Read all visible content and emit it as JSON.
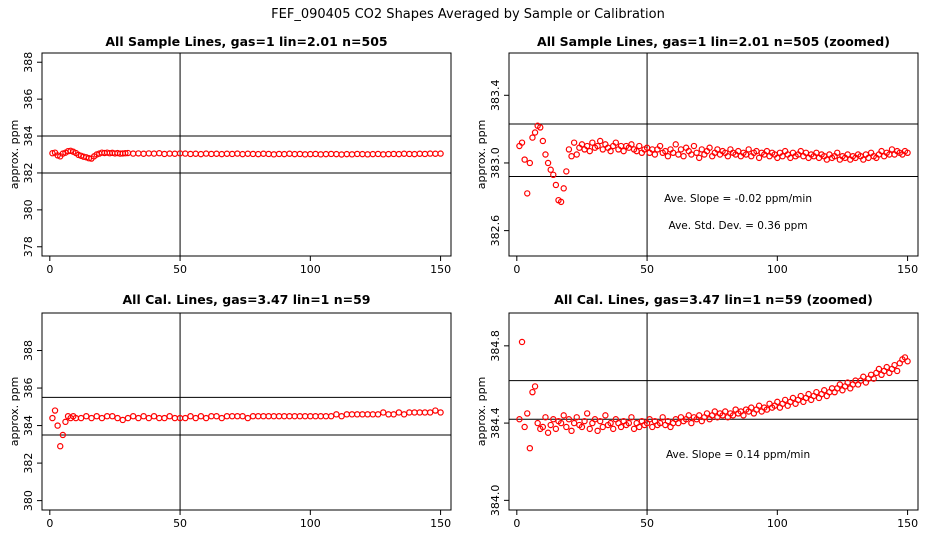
{
  "figure_title": "FEF_090405  CO2 Shapes Averaged by Sample or Calibration",
  "colors": {
    "points": "#ff0000",
    "axes": "#000000"
  },
  "chart_data": [
    {
      "type": "scatter",
      "title": "All Sample Lines, gas=1 lin=2.01 n=505",
      "xlabel": "",
      "ylabel": "approx. ppm",
      "xlim": [
        -3,
        154
      ],
      "ylim": [
        377.5,
        388.5
      ],
      "xticks": [
        0,
        50,
        100,
        150
      ],
      "yticks": [
        378,
        380,
        382,
        384,
        386,
        388
      ],
      "vline": 50,
      "hlines": [
        382,
        384
      ],
      "annotations": [],
      "series": [
        {
          "x": [
            1,
            2,
            3,
            4,
            5,
            6,
            7,
            8,
            9,
            10,
            11,
            12,
            13,
            14,
            15,
            16,
            17,
            18,
            19,
            20,
            21,
            22,
            23,
            24,
            25,
            26,
            27,
            28,
            29,
            30,
            32,
            34,
            36,
            38,
            40,
            42,
            44,
            46,
            48,
            50,
            52,
            54,
            56,
            58,
            60,
            62,
            64,
            66,
            68,
            70,
            72,
            74,
            76,
            78,
            80,
            82,
            84,
            86,
            88,
            90,
            92,
            94,
            96,
            98,
            100,
            102,
            104,
            106,
            108,
            110,
            112,
            114,
            116,
            118,
            120,
            122,
            124,
            126,
            128,
            130,
            132,
            134,
            136,
            138,
            140,
            142,
            144,
            146,
            148,
            150
          ],
          "y": [
            383.07,
            383.1,
            382.95,
            382.9,
            383.05,
            383.1,
            383.18,
            383.2,
            383.15,
            383.08,
            382.98,
            382.93,
            382.88,
            382.85,
            382.8,
            382.78,
            382.9,
            383.0,
            383.05,
            383.1,
            383.08,
            383.1,
            383.07,
            383.09,
            383.06,
            383.08,
            383.05,
            383.06,
            383.07,
            383.08,
            383.05,
            383.06,
            383.04,
            383.06,
            383.05,
            383.07,
            383.03,
            383.05,
            383.04,
            383.06,
            383.05,
            383.03,
            383.04,
            383.02,
            383.05,
            383.03,
            383.04,
            383.02,
            383.04,
            383.03,
            383.05,
            383.02,
            383.04,
            383.03,
            383.02,
            383.04,
            383.03,
            383.01,
            383.03,
            383.02,
            383.04,
            383.02,
            383.03,
            383.01,
            383.02,
            383.03,
            383.01,
            383.02,
            383.03,
            383.02,
            383.0,
            383.02,
            383.01,
            383.03,
            383.02,
            383.01,
            383.02,
            383.03,
            383.01,
            383.02,
            383.03,
            383.02,
            383.04,
            383.03,
            383.02,
            383.04,
            383.03,
            383.05,
            383.04,
            383.05
          ]
        }
      ]
    },
    {
      "type": "scatter",
      "title": "All Sample Lines, gas=1 lin=2.01 n=505 (zoomed)",
      "xlabel": "",
      "ylabel": "approx. ppm",
      "xlim": [
        -3,
        154
      ],
      "ylim": [
        382.45,
        383.65
      ],
      "xticks": [
        0,
        50,
        100,
        150
      ],
      "yticks": [
        382.6,
        383.0,
        383.4
      ],
      "yticklabels": [
        "382.6",
        "383.0",
        "383.4"
      ],
      "vline": 50,
      "hlines": [
        382.92,
        383.23
      ],
      "annotations": [
        "Ave. Slope =  -0.02  ppm/min",
        "Ave. Std. Dev. =  0.36  ppm"
      ],
      "series": [
        {
          "x": [
            1,
            2,
            3,
            4,
            5,
            6,
            7,
            8,
            9,
            10,
            11,
            12,
            13,
            14,
            15,
            16,
            17,
            18,
            19,
            20,
            21,
            22,
            23,
            24,
            25,
            26,
            27,
            28,
            29,
            30,
            31,
            32,
            33,
            34,
            35,
            36,
            37,
            38,
            39,
            40,
            41,
            42,
            43,
            44,
            45,
            46,
            47,
            48,
            49,
            50,
            51,
            52,
            53,
            54,
            55,
            56,
            57,
            58,
            59,
            60,
            61,
            62,
            63,
            64,
            65,
            66,
            67,
            68,
            69,
            70,
            71,
            72,
            73,
            74,
            75,
            76,
            77,
            78,
            79,
            80,
            81,
            82,
            83,
            84,
            85,
            86,
            87,
            88,
            89,
            90,
            91,
            92,
            93,
            94,
            95,
            96,
            97,
            98,
            99,
            100,
            101,
            102,
            103,
            104,
            105,
            106,
            107,
            108,
            109,
            110,
            111,
            112,
            113,
            114,
            115,
            116,
            117,
            118,
            119,
            120,
            121,
            122,
            123,
            124,
            125,
            126,
            127,
            128,
            129,
            130,
            131,
            132,
            133,
            134,
            135,
            136,
            137,
            138,
            139,
            140,
            141,
            142,
            143,
            144,
            145,
            146,
            147,
            148,
            149,
            150
          ],
          "y": [
            383.1,
            383.12,
            383.02,
            382.82,
            383.0,
            383.15,
            383.18,
            383.22,
            383.21,
            383.13,
            383.05,
            383.0,
            382.96,
            382.93,
            382.87,
            382.78,
            382.77,
            382.85,
            382.95,
            383.08,
            383.04,
            383.12,
            383.05,
            383.09,
            383.11,
            383.08,
            383.1,
            383.07,
            383.12,
            383.09,
            383.1,
            383.13,
            383.08,
            383.11,
            383.09,
            383.07,
            383.1,
            383.12,
            383.08,
            383.1,
            383.07,
            383.1,
            383.09,
            383.11,
            383.08,
            383.07,
            383.1,
            383.06,
            383.08,
            383.09,
            383.06,
            383.08,
            383.05,
            383.08,
            383.1,
            383.06,
            383.07,
            383.04,
            383.08,
            383.06,
            383.11,
            383.05,
            383.08,
            383.04,
            383.09,
            383.07,
            383.05,
            383.1,
            383.06,
            383.03,
            383.08,
            383.05,
            383.07,
            383.09,
            383.04,
            383.06,
            383.08,
            383.05,
            383.07,
            383.06,
            383.04,
            383.08,
            383.06,
            383.05,
            383.07,
            383.04,
            383.06,
            383.05,
            383.08,
            383.04,
            383.06,
            383.07,
            383.03,
            383.06,
            383.05,
            383.07,
            383.04,
            383.06,
            383.05,
            383.03,
            383.06,
            383.04,
            383.07,
            383.05,
            383.03,
            383.06,
            383.04,
            383.05,
            383.07,
            383.04,
            383.06,
            383.03,
            383.05,
            383.04,
            383.06,
            383.03,
            383.05,
            383.04,
            383.02,
            383.05,
            383.03,
            383.04,
            383.06,
            383.02,
            383.04,
            383.03,
            383.05,
            383.02,
            383.04,
            383.03,
            383.05,
            383.04,
            383.02,
            383.05,
            383.03,
            383.06,
            383.04,
            383.03,
            383.05,
            383.07,
            383.04,
            383.06,
            383.05,
            383.08,
            383.05,
            383.07,
            383.06,
            383.05,
            383.07,
            383.06
          ]
        }
      ]
    },
    {
      "type": "scatter",
      "title": "All Cal. Lines, gas=3.47 lin=1 n=59",
      "xlabel": "",
      "ylabel": "approx. ppm",
      "xlim": [
        -3,
        154
      ],
      "ylim": [
        379.5,
        390.0
      ],
      "xticks": [
        0,
        50,
        100,
        150
      ],
      "yticks": [
        380,
        382,
        384,
        386,
        388
      ],
      "vline": 50,
      "hlines": [
        383.5,
        385.5
      ],
      "annotations": [],
      "series": [
        {
          "x": [
            1,
            2,
            3,
            4,
            5,
            6,
            7,
            8,
            9,
            10,
            12,
            14,
            16,
            18,
            20,
            22,
            24,
            26,
            28,
            30,
            32,
            34,
            36,
            38,
            40,
            42,
            44,
            46,
            48,
            50,
            52,
            54,
            56,
            58,
            60,
            62,
            64,
            66,
            68,
            70,
            72,
            74,
            76,
            78,
            80,
            82,
            84,
            86,
            88,
            90,
            92,
            94,
            96,
            98,
            100,
            102,
            104,
            106,
            108,
            110,
            112,
            114,
            116,
            118,
            120,
            122,
            124,
            126,
            128,
            130,
            132,
            134,
            136,
            138,
            140,
            142,
            144,
            146,
            148,
            150
          ],
          "y": [
            384.4,
            384.8,
            384.0,
            382.9,
            383.5,
            384.2,
            384.5,
            384.4,
            384.5,
            384.4,
            384.4,
            384.5,
            384.4,
            384.5,
            384.4,
            384.5,
            384.5,
            384.4,
            384.3,
            384.4,
            384.5,
            384.4,
            384.5,
            384.4,
            384.5,
            384.4,
            384.4,
            384.5,
            384.4,
            384.4,
            384.4,
            384.5,
            384.4,
            384.5,
            384.4,
            384.5,
            384.5,
            384.4,
            384.5,
            384.5,
            384.5,
            384.5,
            384.4,
            384.5,
            384.5,
            384.5,
            384.5,
            384.5,
            384.5,
            384.5,
            384.5,
            384.5,
            384.5,
            384.5,
            384.5,
            384.5,
            384.5,
            384.5,
            384.5,
            384.6,
            384.5,
            384.6,
            384.6,
            384.6,
            384.6,
            384.6,
            384.6,
            384.6,
            384.7,
            384.6,
            384.6,
            384.7,
            384.6,
            384.7,
            384.7,
            384.7,
            384.7,
            384.7,
            384.8,
            384.7
          ]
        }
      ]
    },
    {
      "type": "scatter",
      "title": "All Cal. Lines, gas=3.47 lin=1 n=59 (zoomed)",
      "xlabel": "",
      "ylabel": "approx. ppm",
      "xlim": [
        -3,
        154
      ],
      "ylim": [
        383.95,
        384.97
      ],
      "xticks": [
        0,
        50,
        100,
        150
      ],
      "yticks": [
        384.0,
        384.4,
        384.8
      ],
      "yticklabels": [
        "384.0",
        "384.4",
        "384.8"
      ],
      "vline": 50,
      "hlines": [
        384.42,
        384.62
      ],
      "annotations": [
        "Ave. Slope =  0.14  ppm/min"
      ],
      "series": [
        {
          "x": [
            1,
            2,
            3,
            4,
            5,
            6,
            7,
            8,
            9,
            10,
            11,
            12,
            13,
            14,
            15,
            16,
            17,
            18,
            19,
            20,
            21,
            22,
            23,
            24,
            25,
            26,
            27,
            28,
            29,
            30,
            31,
            32,
            33,
            34,
            35,
            36,
            37,
            38,
            39,
            40,
            41,
            42,
            43,
            44,
            45,
            46,
            47,
            48,
            49,
            50,
            51,
            52,
            53,
            54,
            55,
            56,
            57,
            58,
            59,
            60,
            61,
            62,
            63,
            64,
            65,
            66,
            67,
            68,
            69,
            70,
            71,
            72,
            73,
            74,
            75,
            76,
            77,
            78,
            79,
            80,
            81,
            82,
            83,
            84,
            85,
            86,
            87,
            88,
            89,
            90,
            91,
            92,
            93,
            94,
            95,
            96,
            97,
            98,
            99,
            100,
            101,
            102,
            103,
            104,
            105,
            106,
            107,
            108,
            109,
            110,
            111,
            112,
            113,
            114,
            115,
            116,
            117,
            118,
            119,
            120,
            121,
            122,
            123,
            124,
            125,
            126,
            127,
            128,
            129,
            130,
            131,
            132,
            133,
            134,
            135,
            136,
            137,
            138,
            139,
            140,
            141,
            142,
            143,
            144,
            145,
            146,
            147,
            148,
            149,
            150
          ],
          "y": [
            384.42,
            384.82,
            384.38,
            384.45,
            384.27,
            384.56,
            384.59,
            384.4,
            384.37,
            384.38,
            384.43,
            384.35,
            384.39,
            384.42,
            384.37,
            384.41,
            384.4,
            384.44,
            384.38,
            384.42,
            384.36,
            384.4,
            384.43,
            384.39,
            384.38,
            384.41,
            384.45,
            384.37,
            384.4,
            384.42,
            384.36,
            384.41,
            384.38,
            384.44,
            384.39,
            384.4,
            384.37,
            384.42,
            384.4,
            384.38,
            384.41,
            384.39,
            384.4,
            384.43,
            384.37,
            384.4,
            384.38,
            384.41,
            384.39,
            384.4,
            384.42,
            384.38,
            384.41,
            384.39,
            384.4,
            384.43,
            384.39,
            384.41,
            384.38,
            384.4,
            384.42,
            384.4,
            384.43,
            384.41,
            384.42,
            384.44,
            384.4,
            384.43,
            384.42,
            384.44,
            384.41,
            384.43,
            384.45,
            384.42,
            384.44,
            384.46,
            384.43,
            384.45,
            384.44,
            384.46,
            384.43,
            384.45,
            384.44,
            384.47,
            384.45,
            384.46,
            384.44,
            384.47,
            384.46,
            384.48,
            384.45,
            384.47,
            384.49,
            384.46,
            384.48,
            384.47,
            384.5,
            384.48,
            384.49,
            384.51,
            384.48,
            384.5,
            384.52,
            384.49,
            384.51,
            384.53,
            384.5,
            384.52,
            384.54,
            384.51,
            384.53,
            384.55,
            384.52,
            384.54,
            384.56,
            384.53,
            384.55,
            384.57,
            384.54,
            384.56,
            384.58,
            384.56,
            384.58,
            384.6,
            384.57,
            384.59,
            384.61,
            384.58,
            384.6,
            384.62,
            384.6,
            384.62,
            384.64,
            384.61,
            384.63,
            384.65,
            384.63,
            384.66,
            384.68,
            384.65,
            384.67,
            384.69,
            384.66,
            384.68,
            384.7,
            384.67,
            384.71,
            384.73,
            384.74,
            384.72
          ]
        }
      ]
    }
  ]
}
